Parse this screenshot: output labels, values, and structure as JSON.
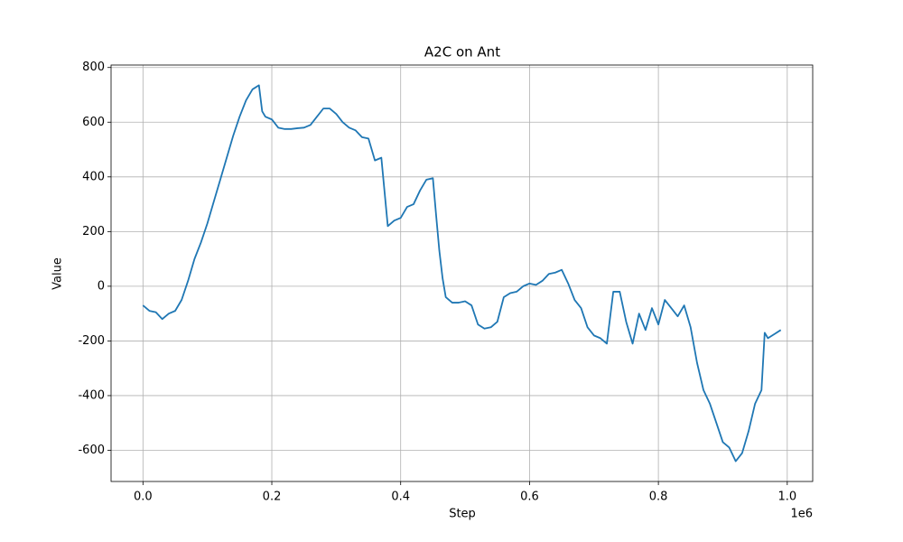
{
  "chart_data": {
    "type": "line",
    "title": "A2C on Ant",
    "x_label": "Step",
    "y_label": "Value",
    "x_offset_label": "1e6",
    "x": [
      0,
      10000,
      20000,
      30000,
      40000,
      50000,
      60000,
      70000,
      80000,
      90000,
      100000,
      110000,
      120000,
      130000,
      140000,
      150000,
      160000,
      170000,
      180000,
      185000,
      190000,
      200000,
      210000,
      220000,
      230000,
      240000,
      250000,
      260000,
      270000,
      280000,
      290000,
      300000,
      310000,
      320000,
      330000,
      340000,
      350000,
      360000,
      370000,
      380000,
      390000,
      400000,
      410000,
      420000,
      430000,
      440000,
      450000,
      455000,
      460000,
      465000,
      470000,
      480000,
      490000,
      500000,
      510000,
      520000,
      530000,
      540000,
      550000,
      560000,
      570000,
      580000,
      590000,
      600000,
      610000,
      620000,
      630000,
      640000,
      650000,
      660000,
      670000,
      680000,
      690000,
      700000,
      710000,
      720000,
      730000,
      740000,
      750000,
      760000,
      770000,
      780000,
      790000,
      800000,
      810000,
      820000,
      830000,
      840000,
      850000,
      860000,
      870000,
      880000,
      890000,
      900000,
      910000,
      920000,
      930000,
      940000,
      950000,
      960000,
      965000,
      970000,
      980000,
      990000
    ],
    "series": [
      {
        "name": "Value",
        "color": "#1f77b4",
        "values": [
          -70,
          -90,
          -95,
          -120,
          -100,
          -90,
          -50,
          20,
          100,
          160,
          230,
          310,
          390,
          470,
          550,
          620,
          680,
          720,
          735,
          640,
          620,
          610,
          580,
          575,
          575,
          578,
          580,
          590,
          620,
          650,
          650,
          630,
          600,
          580,
          570,
          545,
          540,
          460,
          470,
          220,
          240,
          250,
          290,
          300,
          350,
          390,
          395,
          260,
          130,
          30,
          -40,
          -60,
          -60,
          -55,
          -70,
          -140,
          -155,
          -150,
          -130,
          -40,
          -25,
          -20,
          0,
          10,
          5,
          20,
          45,
          50,
          60,
          10,
          -50,
          -80,
          -150,
          -180,
          -190,
          -210,
          -20,
          -20,
          -130,
          -210,
          -100,
          -160,
          -80,
          -140,
          -50,
          -80,
          -110,
          -70,
          -150,
          -280,
          -380,
          -430,
          -500,
          -570,
          -590,
          -640,
          -610,
          -530,
          -430,
          -380,
          -170,
          -190,
          -175,
          -160
        ]
      }
    ],
    "xlim": [
      -49500,
      1039500
    ],
    "ylim": [
      -714,
      809
    ],
    "xticks": [
      {
        "value": 0,
        "label": "0.0"
      },
      {
        "value": 200000,
        "label": "0.2"
      },
      {
        "value": 400000,
        "label": "0.4"
      },
      {
        "value": 600000,
        "label": "0.6"
      },
      {
        "value": 800000,
        "label": "0.8"
      },
      {
        "value": 1000000,
        "label": "1.0"
      }
    ],
    "yticks": [
      -600,
      -400,
      -200,
      0,
      200,
      400,
      600,
      800
    ],
    "grid": true
  }
}
